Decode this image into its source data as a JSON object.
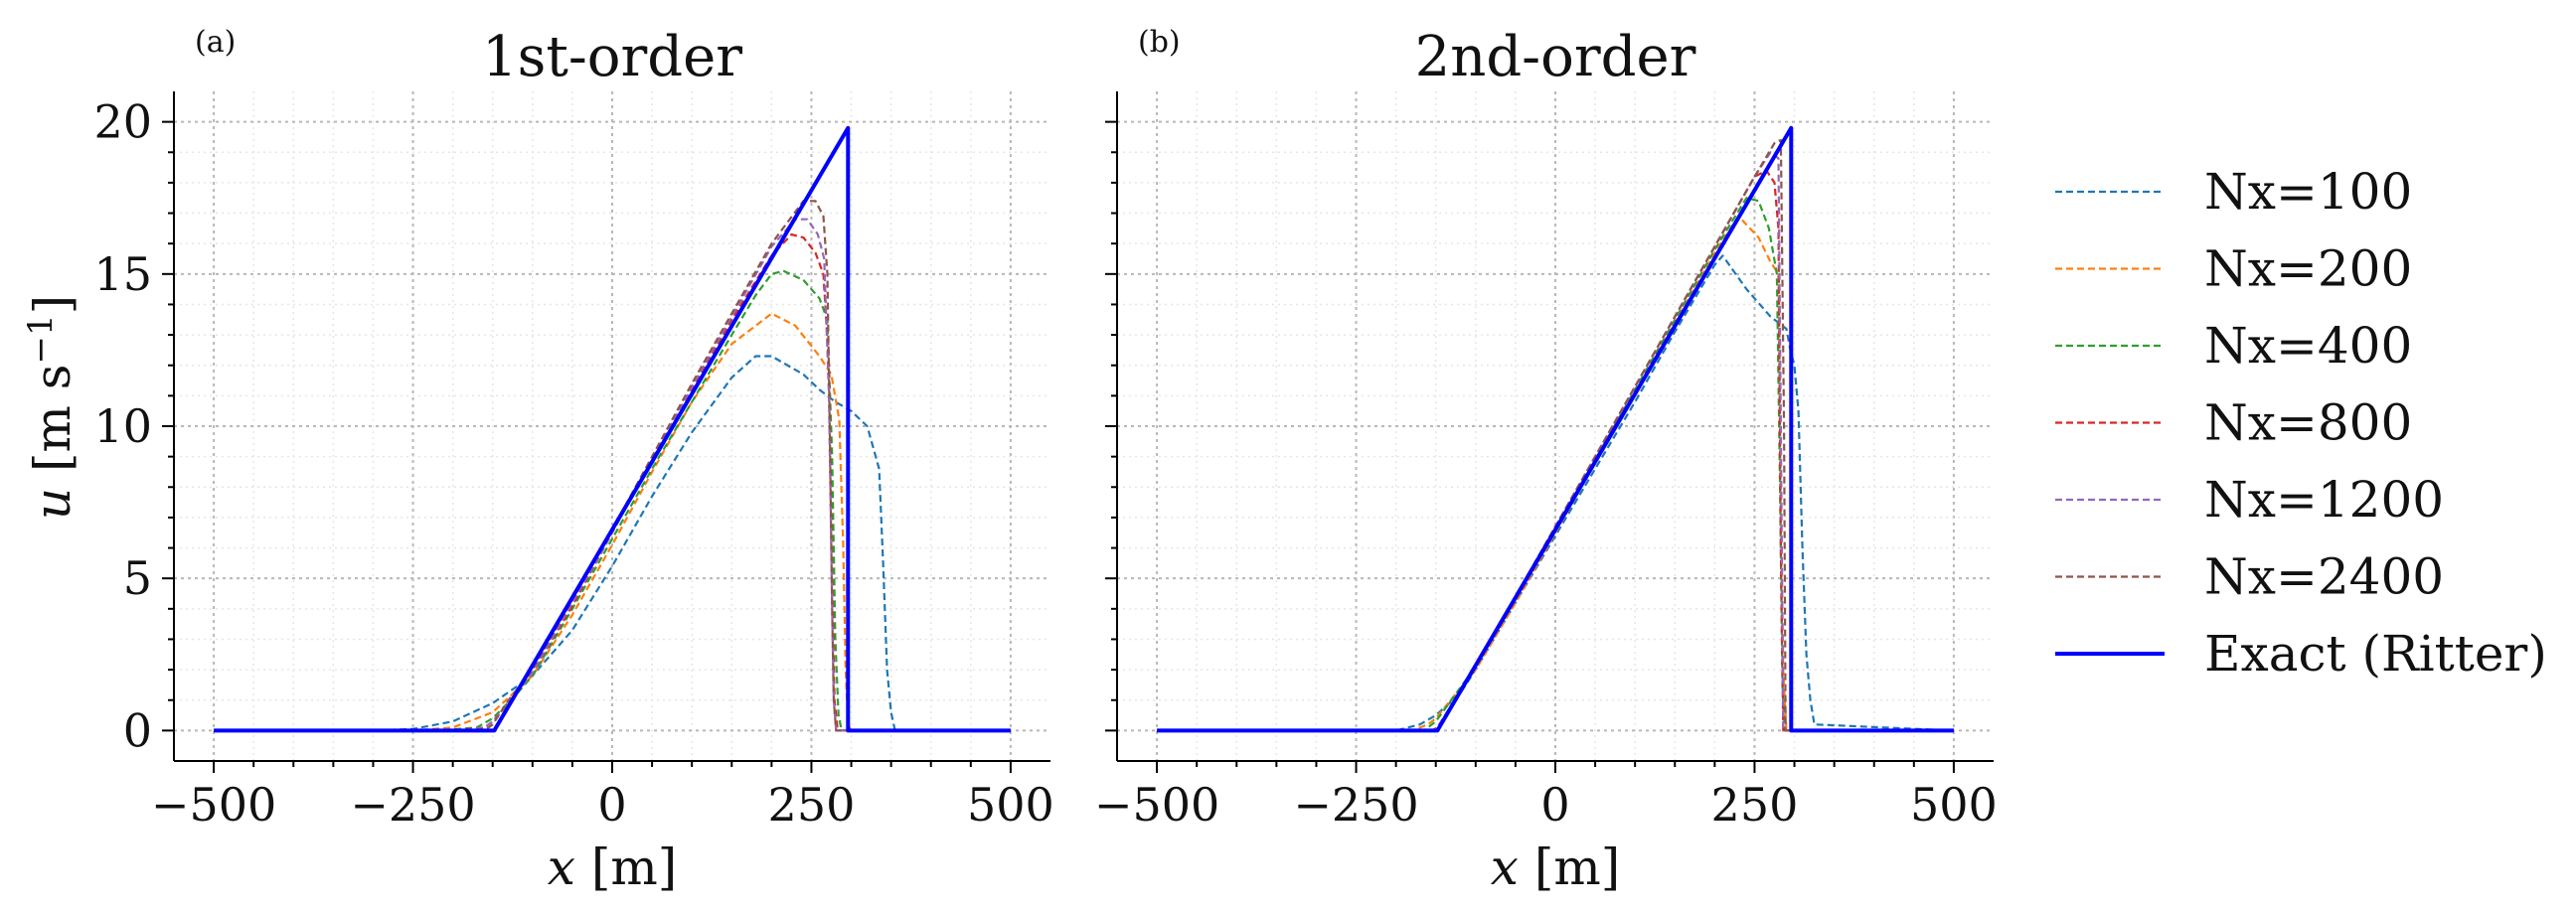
{
  "chart_data": [
    {
      "type": "line",
      "panel": "(a)",
      "title": "1st-order",
      "xlabel_var": "x",
      "xlabel_unit": " [m]",
      "ylabel_var": "u",
      "ylabel_unit": "[m s",
      "ylabel_exp": "−1",
      "ylabel_close": "]",
      "xlim": [
        -550,
        550
      ],
      "ylim": [
        -1,
        21
      ],
      "xticks": [
        -500,
        -250,
        0,
        250,
        500
      ],
      "xtick_labels": [
        "−500",
        "−250",
        "0",
        "250",
        "500"
      ],
      "yticks": [
        0,
        5,
        10,
        15,
        20
      ],
      "ytick_labels": [
        "0",
        "5",
        "10",
        "15",
        "20"
      ],
      "grid": true,
      "series": [
        {
          "name": "Nx=100",
          "color": "#1f77b4",
          "style": "dashed",
          "x": [
            -500,
            -300,
            -250,
            -200,
            -150,
            -100,
            -50,
            0,
            50,
            100,
            150,
            180,
            200,
            240,
            260,
            280,
            300,
            320,
            335,
            340,
            345,
            350,
            355,
            500
          ],
          "y": [
            0,
            0,
            0.05,
            0.3,
            0.9,
            1.8,
            3.3,
            5.4,
            7.7,
            9.8,
            11.6,
            12.3,
            12.3,
            11.7,
            11.2,
            10.8,
            10.5,
            10.0,
            8.6,
            5.5,
            2.0,
            0.6,
            0,
            0
          ]
        },
        {
          "name": "Nx=200",
          "color": "#ff7f0e",
          "style": "dashed",
          "x": [
            -500,
            -250,
            -200,
            -150,
            -100,
            -50,
            0,
            50,
            100,
            150,
            200,
            230,
            260,
            275,
            285,
            290,
            293,
            296,
            300,
            500
          ],
          "y": [
            0,
            0,
            0.1,
            0.6,
            1.8,
            3.8,
            6.1,
            8.5,
            10.8,
            12.7,
            13.7,
            13.3,
            12.3,
            11.7,
            10.2,
            6.0,
            2.0,
            0.2,
            0,
            0
          ]
        },
        {
          "name": "Nx=400",
          "color": "#2ca02c",
          "style": "dashed",
          "x": [
            -500,
            -220,
            -170,
            -150,
            -120,
            -100,
            -50,
            0,
            50,
            100,
            150,
            180,
            200,
            215,
            240,
            260,
            270,
            276,
            280,
            284,
            288,
            500
          ],
          "y": [
            0,
            0,
            0.1,
            0.4,
            1.2,
            1.8,
            4.0,
            6.3,
            8.6,
            10.8,
            13.0,
            14.3,
            15.0,
            15.1,
            14.8,
            14.2,
            13.5,
            9.0,
            3.0,
            0.5,
            0,
            0
          ]
        },
        {
          "name": "Nx=800",
          "color": "#d62728",
          "style": "dashed",
          "x": [
            -500,
            -200,
            -160,
            -150,
            -130,
            -100,
            -50,
            0,
            50,
            100,
            150,
            200,
            225,
            240,
            255,
            265,
            272,
            276,
            279,
            283,
            500
          ],
          "y": [
            0,
            0,
            0.1,
            0.3,
            0.9,
            1.9,
            4.1,
            6.5,
            8.9,
            11.2,
            13.5,
            15.6,
            16.3,
            16.2,
            15.7,
            15.0,
            12.0,
            5.0,
            1.0,
            0,
            0
          ]
        },
        {
          "name": "Nx=1200",
          "color": "#9467bd",
          "style": "dashed",
          "x": [
            -500,
            -190,
            -160,
            -150,
            -130,
            -100,
            -50,
            0,
            50,
            100,
            150,
            200,
            230,
            245,
            258,
            266,
            272,
            276,
            278,
            281,
            500
          ],
          "y": [
            0,
            0,
            0.1,
            0.3,
            0.9,
            1.9,
            4.2,
            6.5,
            8.9,
            11.3,
            13.6,
            15.9,
            16.8,
            16.8,
            16.3,
            15.5,
            11.0,
            4.0,
            1.0,
            0,
            0
          ]
        },
        {
          "name": "Nx=2400",
          "color": "#8c564b",
          "style": "dashed",
          "x": [
            -500,
            -175,
            -155,
            -150,
            -130,
            -100,
            -50,
            0,
            50,
            100,
            150,
            200,
            240,
            255,
            265,
            270,
            273,
            276,
            278,
            281,
            500
          ],
          "y": [
            0,
            0,
            0.1,
            0.2,
            1.0,
            2.0,
            4.3,
            6.6,
            9.0,
            11.4,
            13.7,
            16.0,
            17.4,
            17.4,
            16.9,
            15.0,
            10.0,
            4.0,
            1.0,
            0,
            0
          ]
        },
        {
          "name": "Exact (Ritter)",
          "color": "#0000ff",
          "style": "solid",
          "x": [
            -500,
            -148,
            296,
            296,
            300,
            500
          ],
          "y": [
            0,
            0,
            19.8,
            0,
            0,
            0
          ]
        }
      ]
    },
    {
      "type": "line",
      "panel": "(b)",
      "title": "2nd-order",
      "xlabel_var": "x",
      "xlabel_unit": " [m]",
      "xlim": [
        -550,
        550
      ],
      "ylim": [
        -1,
        21
      ],
      "xticks": [
        -500,
        -250,
        0,
        250,
        500
      ],
      "xtick_labels": [
        "−500",
        "−250",
        "0",
        "250",
        "500"
      ],
      "yticks": [
        0,
        5,
        10,
        15,
        20
      ],
      "grid": true,
      "series": [
        {
          "name": "Nx=100",
          "color": "#1f77b4",
          "style": "dashed",
          "x": [
            -500,
            -200,
            -170,
            -150,
            -120,
            -100,
            -50,
            0,
            50,
            100,
            150,
            200,
            210,
            240,
            270,
            290,
            295,
            300,
            305,
            310,
            315,
            320,
            325,
            500
          ],
          "y": [
            0,
            0,
            0.2,
            0.5,
            1.2,
            2.0,
            4.2,
            6.4,
            8.6,
            10.8,
            13.1,
            15.3,
            15.6,
            14.5,
            13.6,
            13.2,
            12.5,
            12.0,
            10.5,
            6.0,
            2.5,
            1.0,
            0.2,
            0
          ]
        },
        {
          "name": "Nx=200",
          "color": "#ff7f0e",
          "style": "dashed",
          "x": [
            -500,
            -180,
            -160,
            -150,
            -100,
            -50,
            0,
            50,
            100,
            150,
            200,
            230,
            255,
            270,
            280,
            283,
            286,
            290,
            500
          ],
          "y": [
            0,
            0,
            0.2,
            0.4,
            2.0,
            4.2,
            6.5,
            8.8,
            11.1,
            13.4,
            15.7,
            16.9,
            16.2,
            15.4,
            15.0,
            8.0,
            2.0,
            0,
            0
          ]
        },
        {
          "name": "Nx=400",
          "color": "#2ca02c",
          "style": "dashed",
          "x": [
            -500,
            -165,
            -150,
            -100,
            -50,
            0,
            50,
            100,
            150,
            200,
            240,
            255,
            268,
            278,
            282,
            285,
            288,
            500
          ],
          "y": [
            0,
            0,
            0.3,
            2.1,
            4.3,
            6.6,
            8.9,
            11.2,
            13.5,
            15.8,
            17.5,
            17.4,
            16.5,
            15.0,
            8.0,
            1.5,
            0,
            0
          ]
        },
        {
          "name": "Nx=800",
          "color": "#d62728",
          "style": "dashed",
          "x": [
            -500,
            -155,
            -148,
            -100,
            -50,
            0,
            50,
            100,
            150,
            200,
            250,
            265,
            275,
            280,
            283,
            286,
            500
          ],
          "y": [
            0,
            0,
            0.1,
            2.1,
            4.4,
            6.7,
            9.0,
            11.3,
            13.6,
            15.9,
            18.2,
            18.4,
            18.0,
            16.5,
            6.0,
            0,
            0
          ]
        },
        {
          "name": "Nx=1200",
          "color": "#9467bd",
          "style": "dashed",
          "x": [
            -500,
            -152,
            -148,
            -100,
            -50,
            0,
            50,
            100,
            150,
            200,
            250,
            270,
            280,
            283,
            286,
            500
          ],
          "y": [
            0,
            0,
            0.1,
            2.1,
            4.4,
            6.7,
            9.0,
            11.3,
            13.6,
            15.9,
            18.2,
            19.0,
            18.8,
            10.0,
            0,
            0
          ]
        },
        {
          "name": "Nx=2400",
          "color": "#8c564b",
          "style": "dashed",
          "x": [
            -500,
            -150,
            -148,
            -100,
            -50,
            0,
            50,
            100,
            150,
            200,
            250,
            275,
            283,
            287,
            289,
            500
          ],
          "y": [
            0,
            0,
            0.05,
            2.1,
            4.4,
            6.7,
            9.0,
            11.3,
            13.6,
            15.9,
            18.2,
            19.3,
            19.4,
            10.0,
            0,
            0
          ]
        },
        {
          "name": "Exact (Ritter)",
          "color": "#0000ff",
          "style": "solid",
          "x": [
            -500,
            -148,
            296,
            296,
            300,
            500
          ],
          "y": [
            0,
            0,
            19.8,
            0,
            0,
            0
          ]
        }
      ]
    }
  ],
  "legend": {
    "placement": "right",
    "entries": [
      {
        "label": "Nx=100",
        "color": "#1f77b4",
        "style": "dashed"
      },
      {
        "label": "Nx=200",
        "color": "#ff7f0e",
        "style": "dashed"
      },
      {
        "label": "Nx=400",
        "color": "#2ca02c",
        "style": "dashed"
      },
      {
        "label": "Nx=800",
        "color": "#d62728",
        "style": "dashed"
      },
      {
        "label": "Nx=1200",
        "color": "#9467bd",
        "style": "dashed"
      },
      {
        "label": "Nx=2400",
        "color": "#8c564b",
        "style": "dashed"
      },
      {
        "label": "Exact (Ritter)",
        "color": "#0000ff",
        "style": "solid"
      }
    ]
  }
}
